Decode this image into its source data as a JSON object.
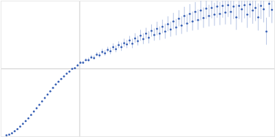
{
  "chart_data": {
    "type": "scatter",
    "x": [
      8,
      12,
      16,
      20,
      24,
      28,
      32,
      36,
      40,
      44,
      48,
      52,
      56,
      60,
      64,
      68,
      72,
      76,
      80,
      84,
      88,
      92,
      96,
      100,
      104,
      108,
      112,
      116,
      120,
      124,
      128,
      132,
      136,
      140,
      144,
      148,
      152,
      156,
      160,
      164,
      168,
      172,
      176,
      180,
      184,
      188,
      192,
      196,
      200,
      204,
      208,
      212,
      216,
      220,
      224,
      228,
      232,
      236,
      240,
      244,
      248,
      252,
      256,
      260,
      264,
      268,
      272,
      276,
      280,
      284,
      288,
      292,
      296,
      300,
      304,
      308,
      312,
      316,
      320,
      324,
      328,
      332,
      336,
      340,
      344,
      348,
      352,
      356,
      360,
      364,
      368,
      372,
      376,
      380,
      384,
      388,
      392,
      396
    ],
    "values": [
      2,
      3,
      5,
      8,
      11,
      15,
      19,
      23,
      27,
      32,
      37,
      42,
      47,
      52,
      57,
      62,
      67,
      72,
      77,
      81,
      85,
      89,
      93,
      96,
      100,
      101,
      105,
      109,
      109,
      113,
      113,
      117,
      116,
      121,
      120,
      125,
      123,
      128,
      126,
      132,
      129,
      135,
      132,
      138,
      136,
      142,
      137,
      145,
      141,
      149,
      144,
      152,
      146,
      156,
      150,
      159,
      152,
      162,
      155,
      166,
      158,
      170,
      161,
      174,
      164,
      178,
      167,
      181,
      170,
      184,
      172,
      186,
      175,
      189,
      178,
      190,
      180,
      192,
      181,
      193,
      183,
      194,
      184,
      192,
      176,
      193,
      188,
      194,
      180,
      195,
      186,
      190,
      176,
      193,
      188,
      155,
      196,
      187
    ],
    "errors": [
      1,
      1,
      1,
      1,
      1,
      1,
      1,
      1,
      1,
      1,
      1,
      1,
      1,
      1,
      1,
      1,
      1,
      1,
      1,
      1,
      1,
      1,
      1,
      1,
      1,
      1,
      2,
      2,
      2,
      2,
      3,
      3,
      3,
      3,
      4,
      4,
      4,
      4,
      5,
      5,
      5,
      5,
      6,
      6,
      6,
      6,
      7,
      7,
      7,
      8,
      8,
      8,
      9,
      9,
      9,
      10,
      10,
      10,
      11,
      11,
      11,
      12,
      12,
      12,
      13,
      13,
      13,
      14,
      14,
      14,
      15,
      15,
      15,
      16,
      16,
      16,
      17,
      17,
      17,
      18,
      18,
      18,
      19,
      19,
      19,
      20,
      20,
      20,
      20,
      20,
      20,
      20,
      20,
      20,
      20,
      20,
      20,
      20
    ],
    "color": "#3a62b5",
    "marker": "circle",
    "xlim": [
      0,
      400
    ],
    "ylim": [
      0,
      200
    ],
    "xticks": [
      115
    ],
    "yticks": [
      100
    ],
    "grid": true,
    "tick_labels": false
  }
}
